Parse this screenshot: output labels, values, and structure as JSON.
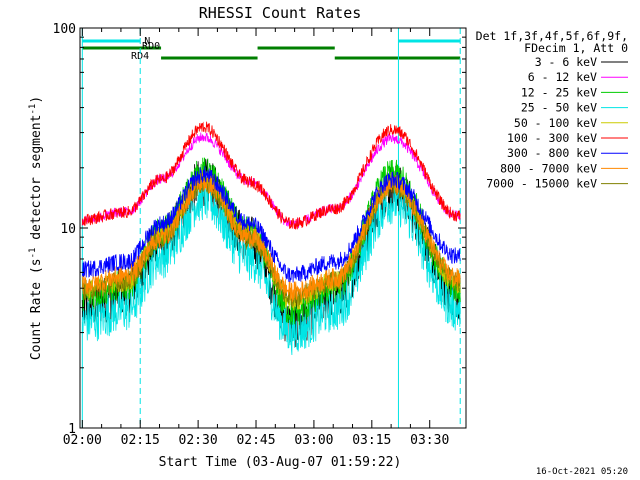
{
  "chart_data": {
    "type": "line",
    "title": "RHESSI Count Rates",
    "xlabel": "Start Time (03-Aug-07 01:59:22)",
    "ylabel_prefix": "Count Rate (s",
    "ylabel_sup": "-1",
    "ylabel_mid": " detector segment",
    "ylabel_sup2": "-1",
    "ylabel_suffix": ")",
    "yscale": "log",
    "ylim": [
      1,
      100
    ],
    "xlim": [
      "01:59:22",
      "03:39:22"
    ],
    "xtick_labels": [
      "02:00",
      "02:15",
      "02:30",
      "02:45",
      "03:00",
      "03:15",
      "03:30"
    ],
    "xticks_min": [
      0.6,
      15.6,
      30.6,
      45.6,
      60.6,
      75.6,
      90.6
    ],
    "ytick_labels": [
      "1",
      "10",
      "100"
    ],
    "yticks": [
      1,
      10,
      100
    ],
    "legend_position": "right",
    "legend_header": [
      "Det 1f,3f,4f,5f,6f,9f,",
      "FDecim 1, Att 0"
    ],
    "series": [
      {
        "name": "3 - 6 keV",
        "color": "#000000",
        "values": [
          4.0,
          4.8,
          8.6,
          17.0,
          8.8,
          3.3,
          4.6,
          16.0,
          4.6
        ]
      },
      {
        "name": "6 - 12 keV",
        "color": "#ff00ff",
        "values": [
          11.0,
          12.0,
          17.5,
          28.5,
          17.0,
          10.5,
          12.5,
          28.0,
          11.5
        ]
      },
      {
        "name": "12 - 25 keV",
        "color": "#00cc00",
        "values": [
          4.6,
          5.2,
          9.5,
          19.0,
          9.5,
          3.8,
          5.1,
          18.5,
          5.0
        ]
      },
      {
        "name": "25 - 50 keV",
        "color": "#00e5e5",
        "values": [
          3.4,
          3.9,
          7.2,
          14.0,
          7.0,
          3.0,
          3.9,
          13.5,
          3.9
        ]
      },
      {
        "name": "50 - 100 keV",
        "color": "#cccc00",
        "values": [
          4.9,
          5.4,
          9.2,
          17.5,
          9.4,
          4.3,
          5.4,
          17.0,
          5.3
        ]
      },
      {
        "name": "100 - 300 keV",
        "color": "#ff0000",
        "values": [
          11.0,
          12.0,
          17.5,
          32.0,
          17.0,
          10.5,
          12.5,
          31.0,
          11.5
        ]
      },
      {
        "name": "300 - 800 keV",
        "color": "#0000ff",
        "values": [
          6.2,
          6.8,
          10.5,
          18.5,
          10.5,
          5.8,
          6.8,
          17.5,
          7.2
        ]
      },
      {
        "name": "800 - 7000 keV",
        "color": "#ff8800",
        "values": [
          5.2,
          5.8,
          9.0,
          17.0,
          9.0,
          4.8,
          5.6,
          16.5,
          5.6
        ]
      },
      {
        "name": "7000 - 15000 keV",
        "color": "#808000",
        "values": [
          4.9,
          5.4,
          8.8,
          16.8,
          8.8,
          4.5,
          5.4,
          16.3,
          5.4
        ]
      }
    ],
    "series_x_min": [
      0.6,
      12.0,
      21.0,
      32.0,
      44.0,
      55.0,
      66.0,
      81.0,
      98.0
    ],
    "flags": [
      {
        "label": "N",
        "color": "#00e5e5",
        "intervals": [
          [
            0.6,
            15.6
          ],
          [
            82.5,
            98.5
          ]
        ]
      },
      {
        "label": "RD0",
        "color": "#007f00",
        "intervals": [
          [
            0.6,
            21.0
          ],
          [
            46.0,
            66.0
          ]
        ]
      },
      {
        "label": "RD4",
        "color": "#007f00",
        "intervals": [
          [
            21.0,
            46.0
          ],
          [
            66.0,
            98.5
          ]
        ]
      }
    ],
    "vlines_min": [
      0.6,
      15.6,
      82.5,
      98.5
    ],
    "footer": "16-Oct-2021 05:20"
  }
}
